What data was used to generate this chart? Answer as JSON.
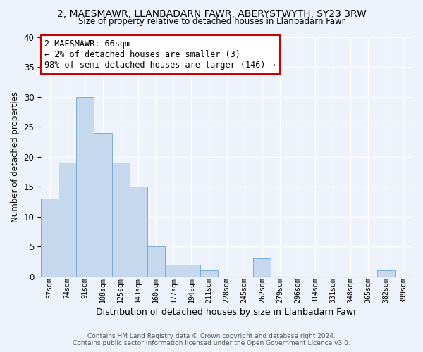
{
  "title": "2, MAESMAWR, LLANBADARN FAWR, ABERYSTWYTH, SY23 3RW",
  "subtitle": "Size of property relative to detached houses in Llanbadarn Fawr",
  "xlabel": "Distribution of detached houses by size in Llanbadarn Fawr",
  "ylabel": "Number of detached properties",
  "bar_color": "#c5d8ee",
  "bar_edge_color": "#7aadd4",
  "background_color": "#eef2fb",
  "plot_background": "#eef2fb",
  "categories": [
    "57sqm",
    "74sqm",
    "91sqm",
    "108sqm",
    "125sqm",
    "143sqm",
    "160sqm",
    "177sqm",
    "194sqm",
    "211sqm",
    "228sqm",
    "245sqm",
    "262sqm",
    "279sqm",
    "296sqm",
    "314sqm",
    "331sqm",
    "348sqm",
    "365sqm",
    "382sqm",
    "399sqm"
  ],
  "values": [
    13,
    19,
    30,
    24,
    19,
    15,
    5,
    2,
    2,
    1,
    0,
    0,
    3,
    0,
    0,
    0,
    0,
    0,
    0,
    1,
    0
  ],
  "ylim": [
    0,
    40
  ],
  "yticks": [
    0,
    5,
    10,
    15,
    20,
    25,
    30,
    35,
    40
  ],
  "annotation_title": "2 MAESMAWR: 66sqm",
  "annotation_line1": "← 2% of detached houses are smaller (3)",
  "annotation_line2": "98% of semi-detached houses are larger (146) →",
  "annotation_box_edge": "#cc0000",
  "annotation_box_face": "#ffffff",
  "footer1": "Contains HM Land Registry data © Crown copyright and database right 2024.",
  "footer2": "Contains public sector information licensed under the Open Government Licence v3.0."
}
